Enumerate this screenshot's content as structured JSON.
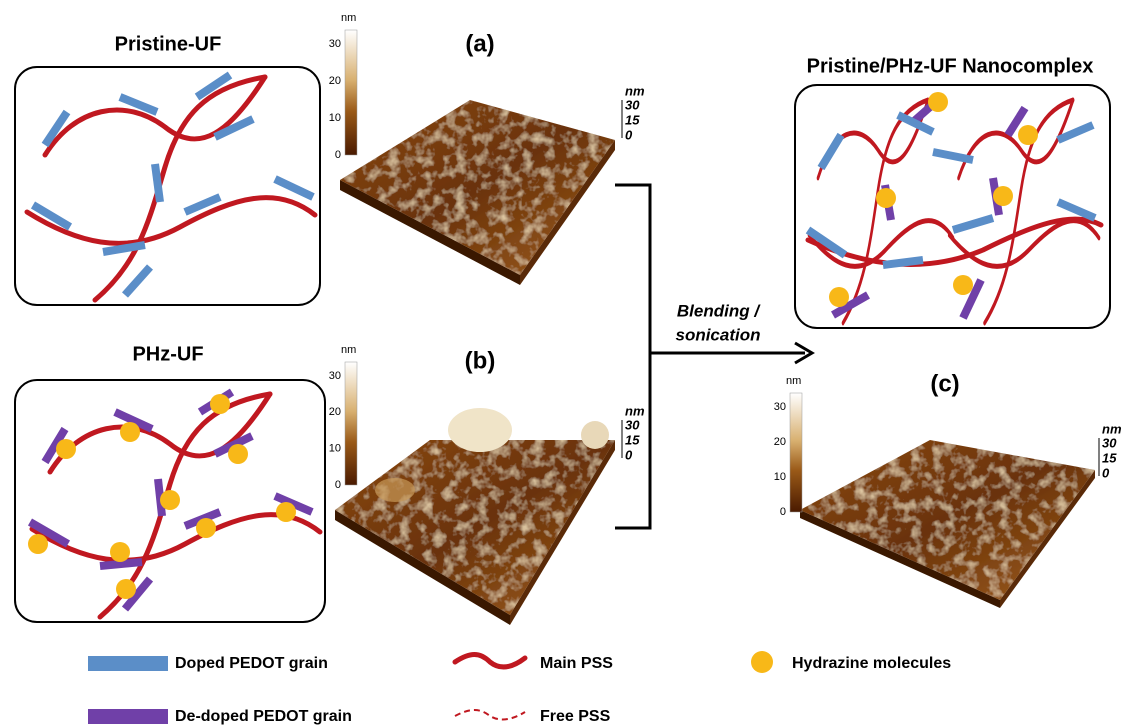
{
  "panels": [
    {
      "title": "Pristine-UF"
    },
    {
      "title": "PHz-UF"
    },
    {
      "title": "Pristine/PHz-UF  Nanocomplex"
    }
  ],
  "afm": [
    {
      "label": "(a)",
      "colorbar": {
        "unit": "nm",
        "ticks": [
          30,
          20,
          10,
          0
        ]
      },
      "zaxis": {
        "unit": "nm",
        "ticks": [
          30,
          15,
          0
        ]
      }
    },
    {
      "label": "(b)",
      "colorbar": {
        "unit": "nm",
        "ticks": [
          30,
          20,
          10,
          0
        ]
      },
      "zaxis": {
        "unit": "nm",
        "ticks": [
          30,
          15,
          0
        ]
      }
    },
    {
      "label": "(c)",
      "colorbar": {
        "unit": "nm",
        "ticks": [
          30,
          20,
          10,
          0
        ]
      },
      "zaxis": {
        "unit": "nm",
        "ticks": [
          30,
          15,
          0
        ]
      }
    }
  ],
  "arrow_label": [
    "Blending /",
    "sonication"
  ],
  "legend": [
    "Doped PEDOT grain",
    "Main PSS",
    "Hydrazine molecules",
    "De-doped PEDOT grain",
    "Free PSS"
  ]
}
